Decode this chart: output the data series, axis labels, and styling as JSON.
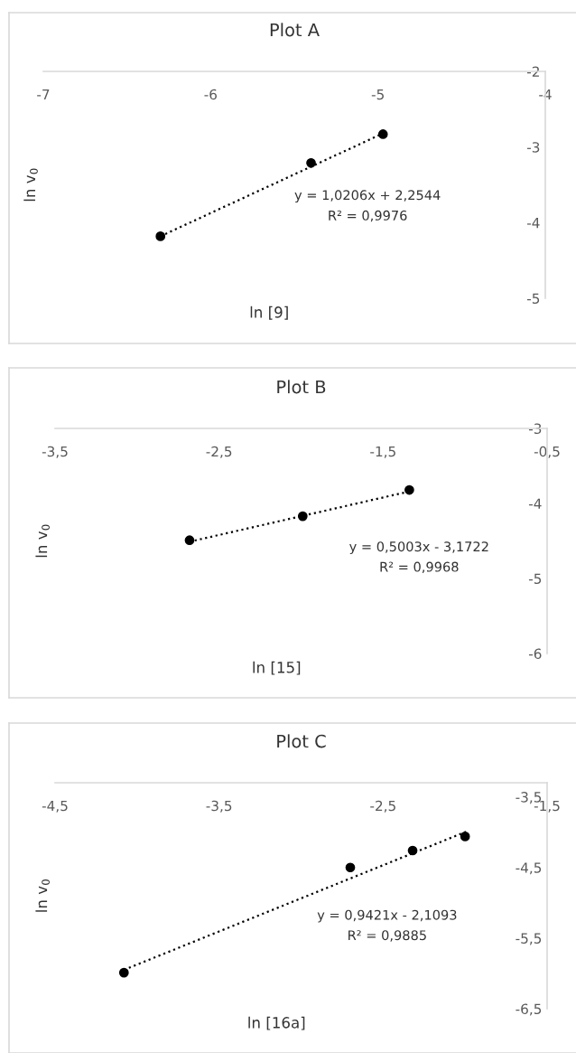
{
  "chart_data": [
    {
      "type": "scatter",
      "title": "Plot A",
      "xlabel": "ln [9]",
      "ylabel": "ln v$_{0}$",
      "xlim": [
        -7,
        -4
      ],
      "ylim": [
        -5,
        -2
      ],
      "xticks": [
        -7,
        -6,
        -5,
        -4
      ],
      "yticks": [
        -2,
        -3,
        -4,
        -5
      ],
      "grid": false,
      "annotations": [
        "y = 1,0206x + 2,2544",
        "R² = 0,9976"
      ],
      "series": [
        {
          "color": "#000000",
          "marker": "circle",
          "x": [
            -6.3,
            -5.4,
            -4.97
          ],
          "values": [
            -4.18,
            -3.21,
            -2.83
          ]
        },
        {
          "type": "line",
          "color": "#000000",
          "line_style": "dotted",
          "marker": "none",
          "x": [
            -6.3,
            -4.97
          ],
          "values": [
            -4.18,
            -2.82
          ]
        }
      ]
    },
    {
      "type": "scatter",
      "title": "Plot B",
      "xlabel": "ln [15]",
      "ylabel": "ln v$_{0}$",
      "xlim": [
        -3.5,
        -0.5
      ],
      "ylim": [
        -6,
        -3
      ],
      "xticks": [
        {
          "value": -3.5,
          "label": "-3,5"
        },
        {
          "value": -2.5,
          "label": "-2,5"
        },
        {
          "value": -1.5,
          "label": "-1,5"
        },
        {
          "value": -0.5,
          "label": "-0,5"
        }
      ],
      "yticks": [
        -3,
        -4,
        -5,
        -6
      ],
      "grid": false,
      "annotations": [
        "y = 0,5003x - 3,1722",
        "R² = 0,9968"
      ],
      "series": [
        {
          "color": "#000000",
          "marker": "circle",
          "x": [
            -2.68,
            -1.99,
            -1.34
          ],
          "values": [
            -4.49,
            -4.17,
            -3.82
          ]
        },
        {
          "type": "line",
          "color": "#000000",
          "line_style": "dotted",
          "marker": "none",
          "x": [
            -2.68,
            -1.34
          ],
          "values": [
            -4.51,
            -3.84
          ]
        }
      ]
    },
    {
      "type": "scatter",
      "title": "Plot C",
      "xlabel": "ln [16a]",
      "ylabel": "ln v$_{0}$",
      "xlim": [
        -4.5,
        -1.5
      ],
      "ylim": [
        -6.5,
        -3.3
      ],
      "xticks": [
        {
          "value": -4.5,
          "label": "-4,5"
        },
        {
          "value": -3.5,
          "label": "-3,5"
        },
        {
          "value": -2.5,
          "label": "-2,5"
        },
        {
          "value": -1.5,
          "label": "-1,5"
        }
      ],
      "yticks": [
        {
          "value": -3.5,
          "label": "-3,5"
        },
        {
          "value": -4.5,
          "label": "-4,5"
        },
        {
          "value": -5.5,
          "label": "-5,5"
        },
        {
          "value": -6.5,
          "label": "-6,5"
        }
      ],
      "grid": false,
      "annotations": [
        "y = 0,9421x - 2,1093",
        "R² = 0,9885"
      ],
      "series": [
        {
          "color": "#000000",
          "marker": "circle",
          "x": [
            -4.08,
            -2.7,
            -2.32,
            -2.0
          ],
          "values": [
            -5.99,
            -4.5,
            -4.26,
            -4.06
          ]
        },
        {
          "type": "line",
          "color": "#000000",
          "line_style": "dotted",
          "marker": "none",
          "x": [
            -4.08,
            -1.98
          ],
          "values": [
            -5.95,
            -3.98
          ]
        }
      ]
    }
  ]
}
